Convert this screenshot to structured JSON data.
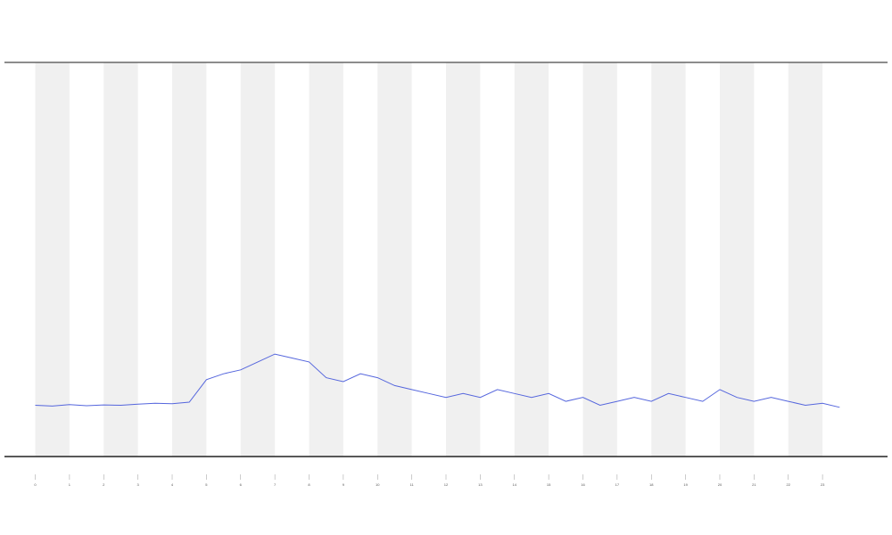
{
  "chart_data": {
    "type": "line",
    "x": [
      0,
      0.5,
      1,
      1.5,
      2,
      2.5,
      3,
      3.5,
      4,
      4.5,
      5,
      5.5,
      6,
      6.5,
      7,
      7.5,
      8,
      8.5,
      9,
      9.5,
      10,
      10.5,
      11,
      11.5,
      12,
      12.5,
      13,
      13.5,
      14,
      14.5,
      15,
      15.5,
      16,
      16.5,
      17,
      17.5,
      18,
      18.5,
      19,
      19.5,
      20,
      20.5,
      21,
      21.5,
      22,
      22.5,
      23,
      23.5
    ],
    "series": [
      {
        "color": "#5566dd",
        "values": [
          13,
          12.8,
          13.2,
          12.9,
          13.1,
          13,
          13.3,
          13.5,
          13.4,
          13.8,
          19.5,
          21,
          22,
          24,
          26,
          25,
          24,
          20,
          19,
          21,
          20,
          18,
          17,
          16,
          15,
          16,
          15,
          17,
          16,
          15,
          16,
          14,
          15,
          13,
          14,
          15,
          14,
          16,
          15,
          14,
          17,
          15,
          14,
          15,
          14,
          13,
          13.5,
          12.5
        ]
      }
    ],
    "xlim": [
      -0.9,
      24.9
    ],
    "ylim": [
      0,
      100
    ],
    "xticks": [
      0,
      1,
      2,
      3,
      4,
      5,
      6,
      7,
      8,
      9,
      10,
      11,
      12,
      13,
      14,
      15,
      16,
      17,
      18,
      19,
      20,
      21,
      22,
      23
    ],
    "shaded_bands": true
  }
}
